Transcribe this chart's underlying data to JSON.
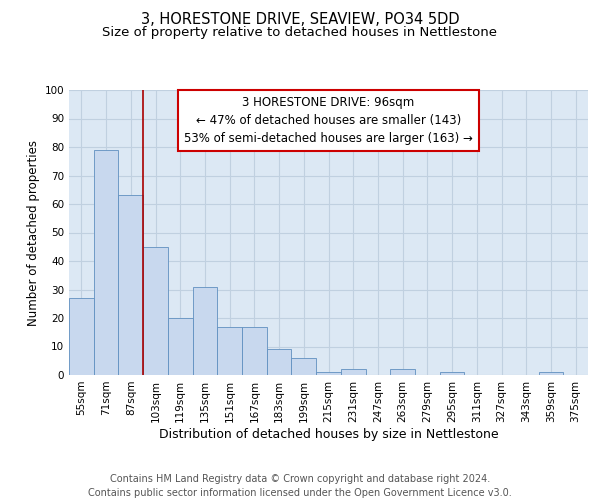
{
  "title": "3, HORESTONE DRIVE, SEAVIEW, PO34 5DD",
  "subtitle": "Size of property relative to detached houses in Nettlestone",
  "xlabel": "Distribution of detached houses by size in Nettlestone",
  "ylabel": "Number of detached properties",
  "categories": [
    "55sqm",
    "71sqm",
    "87sqm",
    "103sqm",
    "119sqm",
    "135sqm",
    "151sqm",
    "167sqm",
    "183sqm",
    "199sqm",
    "215sqm",
    "231sqm",
    "247sqm",
    "263sqm",
    "279sqm",
    "295sqm",
    "311sqm",
    "327sqm",
    "343sqm",
    "359sqm",
    "375sqm"
  ],
  "values": [
    27,
    79,
    63,
    45,
    20,
    31,
    17,
    17,
    9,
    6,
    1,
    2,
    0,
    2,
    0,
    1,
    0,
    0,
    0,
    1,
    0
  ],
  "bar_color": "#c8d8ee",
  "bar_edge_color": "#6090c0",
  "bar_width": 1.0,
  "property_line_x": 2.5,
  "annotation_text": "3 HORESTONE DRIVE: 96sqm\n← 47% of detached houses are smaller (143)\n53% of semi-detached houses are larger (163) →",
  "annotation_box_color": "#ffffff",
  "annotation_box_edge_color": "#cc0000",
  "vline_color": "#aa0000",
  "ylim": [
    0,
    100
  ],
  "yticks": [
    0,
    10,
    20,
    30,
    40,
    50,
    60,
    70,
    80,
    90,
    100
  ],
  "grid_color": "#c0d0e0",
  "background_color": "#dce8f4",
  "footer_text": "Contains HM Land Registry data © Crown copyright and database right 2024.\nContains public sector information licensed under the Open Government Licence v3.0.",
  "title_fontsize": 10.5,
  "subtitle_fontsize": 9.5,
  "xlabel_fontsize": 9,
  "ylabel_fontsize": 8.5,
  "annotation_fontsize": 8.5,
  "footer_fontsize": 7,
  "tick_fontsize": 7.5
}
